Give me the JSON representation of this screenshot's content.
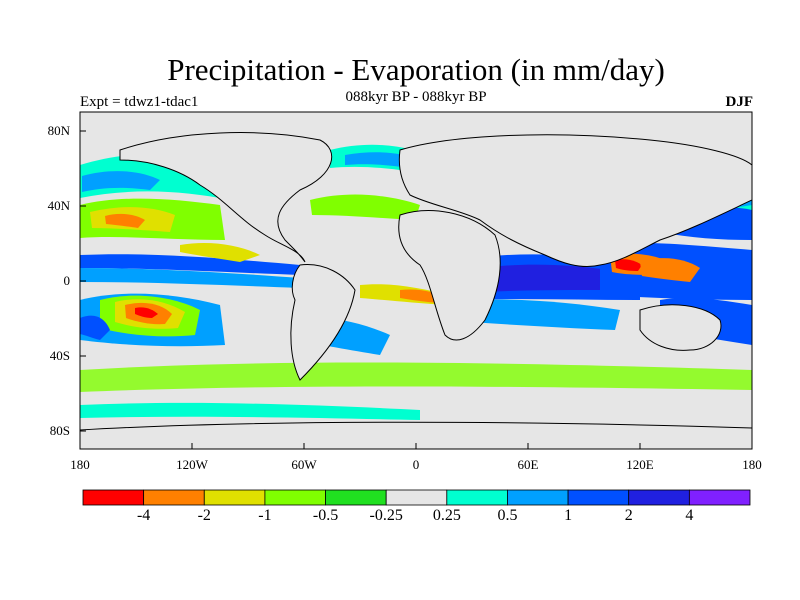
{
  "title": "Precipitation - Evaporation (in mm/day)",
  "subtitle": "088kyr BP - 088kyr BP",
  "experiment": "Expt = tdwz1-tdac1",
  "season": "DJF",
  "latitude_labels": [
    "80N",
    "40N",
    "0",
    "40S",
    "80S"
  ],
  "longitude_labels": [
    "180",
    "120W",
    "60W",
    "0",
    "60E",
    "120E",
    "180"
  ],
  "colorbar": {
    "colors": [
      "#ff0000",
      "#ff8000",
      "#e0e000",
      "#80ff00",
      "#20e020",
      "#e6e6e6",
      "#00ffd0",
      "#00a0ff",
      "#0050ff",
      "#2020e0",
      "#8020ff"
    ],
    "labels": [
      "-4",
      "-2",
      "-1",
      "-0.5",
      "-0.25",
      "0.25",
      "0.5",
      "1",
      "2",
      "4"
    ]
  },
  "colors": {
    "land_background": "#e6e6e6",
    "coastline": "#000000"
  }
}
